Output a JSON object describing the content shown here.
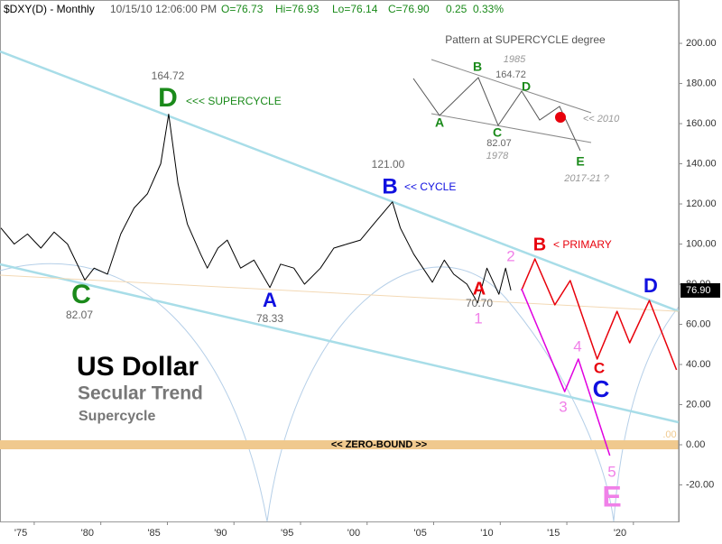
{
  "header": {
    "symbol": "$DXY(D) - Monthly",
    "time": "10/15/10 12:06:00 PM",
    "open": "O=76.73",
    "high": "Hi=76.93",
    "low": "Lo=76.14",
    "close": "C=76.90",
    "change": "0.25",
    "pct": "0.33%"
  },
  "chart_data": {
    "type": "line",
    "title": "US Dollar",
    "subtitle": "Secular Trend",
    "subtitle2": "Supercycle",
    "xlim": [
      1972.43,
      2023.4
    ],
    "xticks": [
      {
        "value": 1975,
        "label": "'75"
      },
      {
        "value": 1980,
        "label": "'80"
      },
      {
        "value": 1985,
        "label": "'85"
      },
      {
        "value": 1990,
        "label": "'90"
      },
      {
        "value": 1995,
        "label": "'95"
      },
      {
        "value": 2000,
        "label": "'00"
      },
      {
        "value": 2005,
        "label": "'05"
      },
      {
        "value": 2010,
        "label": "'10"
      },
      {
        "value": 2015,
        "label": "'15"
      },
      {
        "value": 2020,
        "label": "'20"
      }
    ],
    "ylim": [
      -38.2,
      221.6
    ],
    "yticks": [
      {
        "value": -20,
        "label": "-20.00"
      },
      {
        "value": 0,
        "label": "0.00"
      },
      {
        "value": 20,
        "label": "20.00"
      },
      {
        "value": 40,
        "label": "40.00"
      },
      {
        "value": 60,
        "label": "60.00"
      },
      {
        "value": 80,
        "label": "80.00"
      },
      {
        "value": 100,
        "label": "100.00"
      },
      {
        "value": 120,
        "label": "120.00"
      },
      {
        "value": 140,
        "label": "140.00"
      },
      {
        "value": 160,
        "label": "160.00"
      },
      {
        "value": 180,
        "label": "180.00"
      },
      {
        "value": 200,
        "label": "200.00"
      }
    ],
    "series": [
      {
        "color": "#a8dde8",
        "x": [
          1972.43,
          2023.4
        ],
        "values": [
          196,
          66.5
        ]
      },
      {
        "color": "#a8dde8",
        "x": [
          1972.43,
          2023.4
        ],
        "values": [
          89.9,
          11.2
        ]
      },
      {
        "color": "#f3d9b5",
        "x": [
          1972.43,
          2023.4
        ],
        "values": [
          84.5,
          66.5
        ]
      },
      {
        "color": "#000000",
        "x": [
          1972.5,
          1973.5,
          1974.5,
          1975.5,
          1976.5,
          1977.5,
          1978.8,
          1979.5,
          1980.5,
          1981.5,
          1982.5,
          1983.5,
          1984.5,
          1985.1,
          1985.8,
          1986.5,
          1987.5,
          1988.0,
          1988.8,
          1989.5,
          1990.5,
          1991.5,
          1992.7,
          1993.5,
          1994.5,
          1995.3,
          1996.5,
          1997.5,
          1998.5,
          1999.5,
          2000.5,
          2001.9,
          2002.5,
          2003.5,
          2004.9,
          2005.8,
          2006.5,
          2007.5,
          2008.3,
          2009.0,
          2009.9,
          2010.4,
          2010.8
        ],
        "values": [
          108,
          100,
          105,
          98,
          106,
          100,
          82.07,
          88,
          85,
          105,
          118,
          125,
          140,
          164.72,
          130,
          110,
          95,
          88,
          98,
          102,
          88,
          92,
          78.33,
          90,
          88,
          80,
          88,
          98,
          100,
          102,
          110,
          121.0,
          108,
          95,
          81,
          92,
          85,
          80,
          70.7,
          88,
          75,
          88,
          76.9
        ]
      },
      {
        "color": "#e8000b",
        "x": [
          2011.59,
          2012.6,
          2014.1,
          2015.25,
          2017.28,
          2018.77,
          2019.72,
          2021.2,
          2023.24
        ],
        "values": [
          76.9,
          92.6,
          69.7,
          81.8,
          42.7,
          66.5,
          50.8,
          71.9,
          37.3
        ]
      },
      {
        "color": "#e000e0",
        "x": [
          2011.59,
          2014.84,
          2015.86,
          2018.23
        ],
        "values": [
          77.8,
          26.5,
          42.7,
          -5.4
        ]
      }
    ],
    "zero_bound": {
      "value": 0,
      "label": "<< ZERO-BOUND >>"
    },
    "last_price": {
      "value": 76.9,
      "label": "76.90"
    },
    "annotations": [
      "164.72",
      "D",
      "<<< SUPERCYCLE",
      "121.00",
      "B",
      "<< CYCLE",
      "C",
      "82.07",
      "A",
      "78.33",
      "A",
      "70.70",
      "1",
      "2",
      "B",
      "< PRIMARY",
      "D",
      "C",
      "C",
      "4",
      "3",
      "5",
      "E",
      ".00"
    ]
  },
  "inset": {
    "title": "Pattern at SUPERCYCLE degree",
    "labels": [
      "A",
      "B",
      "C",
      "D",
      "E",
      "1985",
      "164.72",
      "82.07",
      "1978",
      "<< 2010",
      "2017-21 ?"
    ]
  }
}
